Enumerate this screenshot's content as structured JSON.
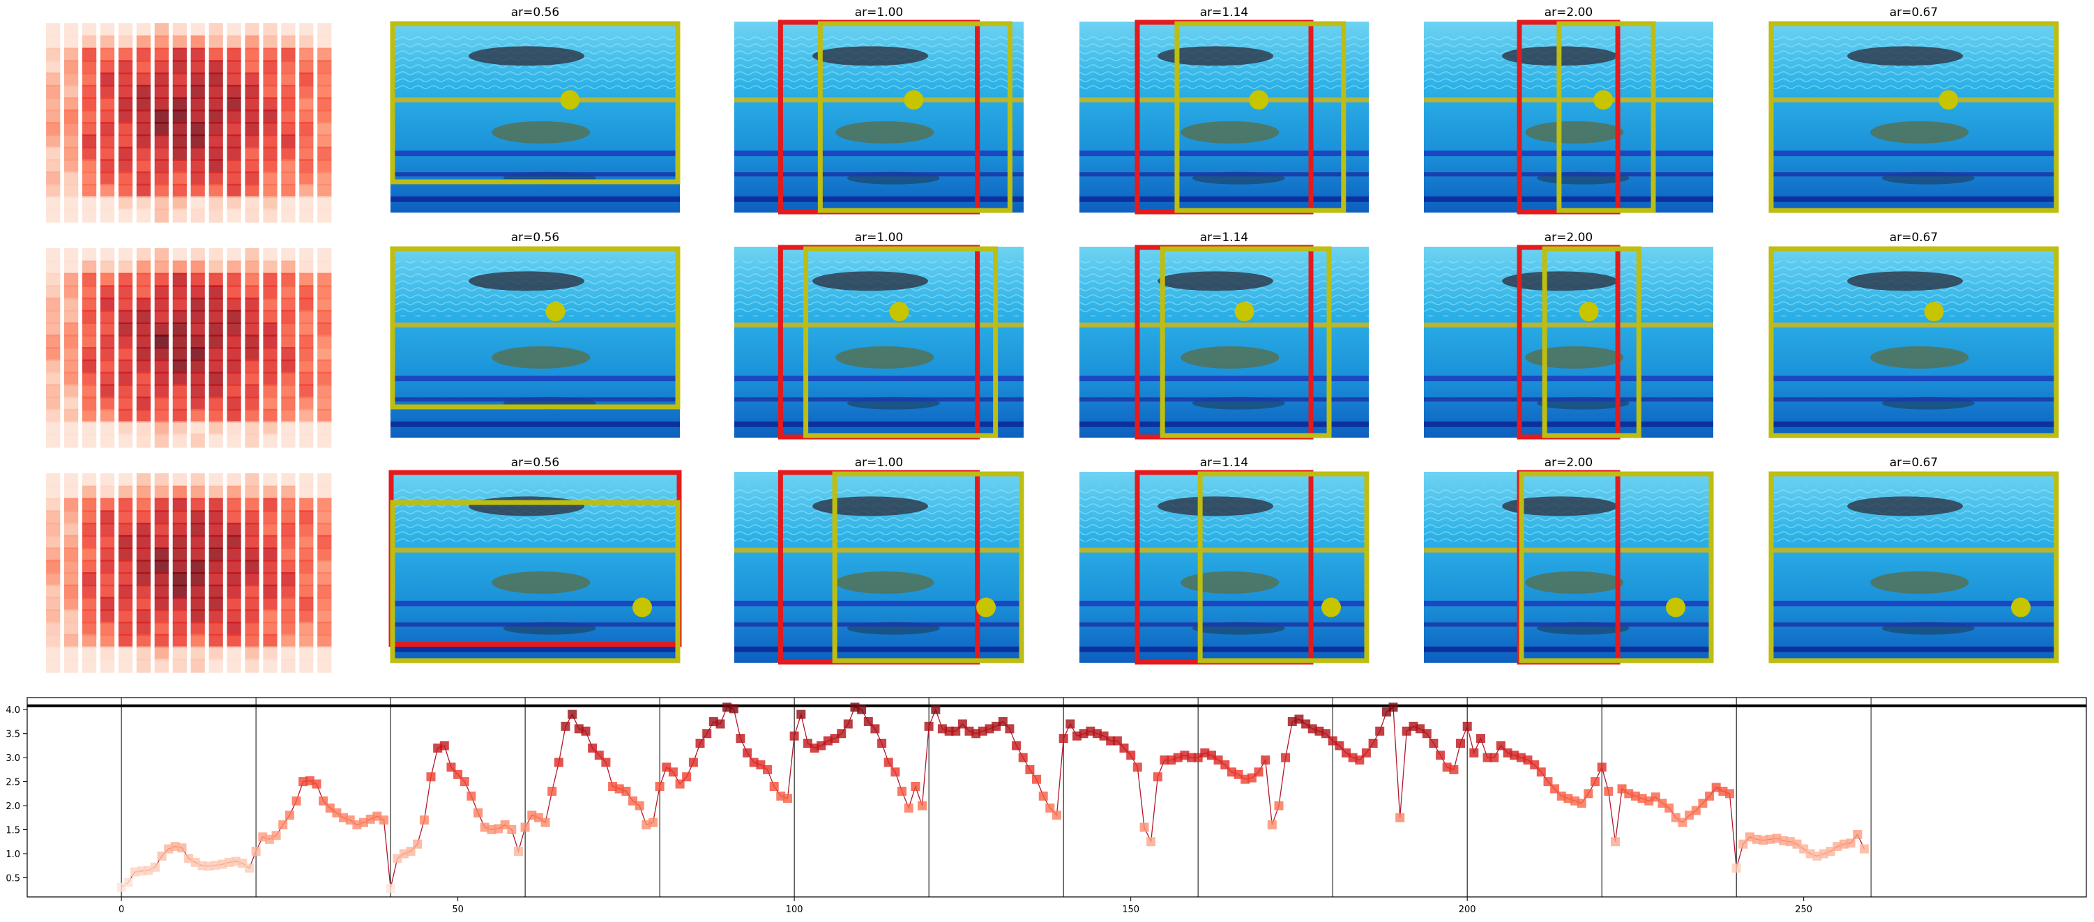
{
  "chart_data": [
    {
      "type": "heatmap",
      "panel": "grid",
      "rows": 3,
      "columns": 6,
      "heatmap_grid": [
        16,
        16
      ],
      "column_titles": [
        "",
        "ar=0.56",
        "ar=1.00",
        "ar=1.14",
        "ar=2.00",
        "ar=0.67"
      ],
      "box_colors": {
        "red": "#e41a1c",
        "yellow": "#bdbd12",
        "dot": "#c7c400"
      },
      "colormap": "Reds",
      "photo_subject": "underwater swimmers in pool lanes"
    },
    {
      "type": "line",
      "title": "",
      "xlabel": "",
      "ylabel": "",
      "xlim": [
        -14,
        292
      ],
      "ylim": [
        0.1,
        4.25
      ],
      "xticks": [
        0,
        50,
        100,
        150,
        200,
        250
      ],
      "yticks": [
        0.5,
        1.0,
        1.5,
        2.0,
        2.5,
        3.0,
        3.5,
        4.0
      ],
      "xtick_labels": [
        "0",
        "50",
        "100",
        "150",
        "200",
        "250"
      ],
      "ytick_labels": [
        "0.5",
        "1.0",
        "1.5",
        "2.0",
        "2.5",
        "3.0",
        "3.5",
        "4.0"
      ],
      "hline": 4.08,
      "vlines": [
        0,
        20,
        40,
        60,
        80,
        100,
        120,
        140,
        160,
        180,
        200,
        220,
        240,
        260
      ],
      "marker": "square",
      "color_map": "Reds",
      "line_color": "#b2182b",
      "x_start": 0,
      "values": [
        0.3,
        0.4,
        0.62,
        0.64,
        0.65,
        0.72,
        0.95,
        1.1,
        1.15,
        1.12,
        0.9,
        0.82,
        0.75,
        0.74,
        0.76,
        0.78,
        0.82,
        0.84,
        0.8,
        0.7,
        1.05,
        1.35,
        1.3,
        1.38,
        1.6,
        1.8,
        2.1,
        2.5,
        2.52,
        2.45,
        2.1,
        1.95,
        1.85,
        1.75,
        1.7,
        1.6,
        1.65,
        1.72,
        1.78,
        1.7,
        0.28,
        0.9,
        1.0,
        1.05,
        1.2,
        1.7,
        2.6,
        3.2,
        3.25,
        2.8,
        2.65,
        2.5,
        2.2,
        1.85,
        1.55,
        1.5,
        1.52,
        1.6,
        1.5,
        1.05,
        1.55,
        1.8,
        1.75,
        1.65,
        2.3,
        2.9,
        3.65,
        3.9,
        3.6,
        3.55,
        3.2,
        3.05,
        2.9,
        2.4,
        2.35,
        2.3,
        2.1,
        2.0,
        1.6,
        1.65,
        2.4,
        2.8,
        2.7,
        2.45,
        2.6,
        2.9,
        3.3,
        3.5,
        3.75,
        3.7,
        4.05,
        4.02,
        3.4,
        3.1,
        2.9,
        2.85,
        2.75,
        2.4,
        2.2,
        2.15,
        3.45,
        3.9,
        3.3,
        3.2,
        3.25,
        3.35,
        3.4,
        3.5,
        3.7,
        4.05,
        4.0,
        3.75,
        3.6,
        3.3,
        2.9,
        2.7,
        2.3,
        1.95,
        2.4,
        2.0,
        3.65,
        4.0,
        3.6,
        3.55,
        3.55,
        3.7,
        3.55,
        3.5,
        3.55,
        3.6,
        3.65,
        3.75,
        3.6,
        3.25,
        3.0,
        2.75,
        2.55,
        2.2,
        1.95,
        1.8,
        3.4,
        3.7,
        3.45,
        3.5,
        3.55,
        3.5,
        3.45,
        3.35,
        3.35,
        3.2,
        3.05,
        2.8,
        1.55,
        1.25,
        2.6,
        2.95,
        2.95,
        3.0,
        3.05,
        3.0,
        3.0,
        3.1,
        3.05,
        2.95,
        2.85,
        2.7,
        2.65,
        2.55,
        2.58,
        2.7,
        2.95,
        1.6,
        2.0,
        3.0,
        3.75,
        3.8,
        3.7,
        3.6,
        3.55,
        3.5,
        3.35,
        3.25,
        3.1,
        3.0,
        2.95,
        3.1,
        3.3,
        3.55,
        3.95,
        4.05,
        1.75,
        3.55,
        3.65,
        3.6,
        3.5,
        3.3,
        3.05,
        2.8,
        2.75,
        3.3,
        3.65,
        3.1,
        3.4,
        3.0,
        3.0,
        3.25,
        3.1,
        3.05,
        3.0,
        2.95,
        2.85,
        2.7,
        2.5,
        2.35,
        2.2,
        2.15,
        2.1,
        2.05,
        2.25,
        2.5,
        2.8,
        2.3,
        1.25,
        2.35,
        2.25,
        2.2,
        2.15,
        2.1,
        2.18,
        2.05,
        1.95,
        1.75,
        1.65,
        1.8,
        1.9,
        2.05,
        2.2,
        2.38,
        2.3,
        2.25,
        0.7,
        1.2,
        1.35,
        1.3,
        1.28,
        1.3,
        1.32,
        1.27,
        1.25,
        1.2,
        1.1,
        1.0,
        0.95,
        1.0,
        1.05,
        1.15,
        1.2,
        1.22,
        1.4,
        1.1
      ]
    }
  ]
}
